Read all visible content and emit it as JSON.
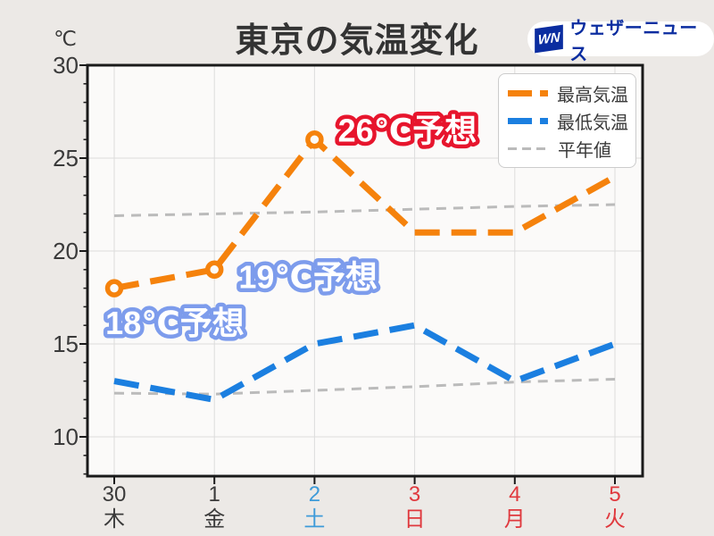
{
  "page": {
    "background": "#ECE9E6",
    "plot_background": "#FBFAF9"
  },
  "title": "東京の気温変化",
  "unit_label": "℃",
  "logo": {
    "mark": "WN",
    "text": "ウェザーニュース",
    "brand_color": "#0B2DA0"
  },
  "legend": {
    "items": [
      {
        "label": "最高気温",
        "color": "#F5820C",
        "style": "dash-thick"
      },
      {
        "label": "最低気温",
        "color": "#1B7FE0",
        "style": "dash-thick"
      },
      {
        "label": "平年値",
        "color": "#BBBBBB",
        "style": "dash-thin"
      }
    ]
  },
  "chart_data": {
    "type": "line",
    "title": "東京の気温変化",
    "ylabel": "℃",
    "ylim": [
      8,
      30
    ],
    "yticks": [
      30,
      25,
      20,
      15,
      10
    ],
    "grid": true,
    "legend_position": "top-right",
    "categories": [
      {
        "date": "30",
        "weekday": "木",
        "color": "#3A3A3A"
      },
      {
        "date": "1",
        "weekday": "金",
        "color": "#3A3A3A"
      },
      {
        "date": "2",
        "weekday": "土",
        "color": "#3E9BD9"
      },
      {
        "date": "3",
        "weekday": "日",
        "color": "#E0393E"
      },
      {
        "date": "4",
        "weekday": "月",
        "color": "#E0393E"
      },
      {
        "date": "5",
        "weekday": "火",
        "color": "#E0393E"
      }
    ],
    "series": [
      {
        "name": "最高気温",
        "values": [
          18,
          19,
          26,
          21,
          21,
          24
        ],
        "color": "#F5820C",
        "dash": "28 13",
        "width": 7,
        "markers": [
          0,
          1,
          2
        ]
      },
      {
        "name": "最低気温",
        "values": [
          13,
          12,
          15,
          16,
          13,
          15
        ],
        "color": "#1B7FE0",
        "dash": "28 13",
        "width": 7,
        "markers": []
      },
      {
        "name": "平年値(最高気温)",
        "values": [
          21.9,
          22.0,
          22.1,
          22.25,
          22.4,
          22.5
        ],
        "color": "#BBBBBB",
        "dash": "11 8",
        "width": 3,
        "markers": []
      },
      {
        "name": "平年値(最低気温)",
        "values": [
          12.35,
          12.3,
          12.5,
          12.7,
          12.95,
          13.1
        ],
        "color": "#BBBBBB",
        "dash": "11 8",
        "width": 3,
        "markers": []
      }
    ],
    "annotations": [
      {
        "text": "18℃予想",
        "outline_color": "#7D9CEC",
        "point_index": 0
      },
      {
        "text": "19℃予想",
        "outline_color": "#7D9CEC",
        "point_index": 1
      },
      {
        "text": "26℃予想",
        "outline_color": "#E7152D",
        "point_index": 2
      }
    ]
  }
}
